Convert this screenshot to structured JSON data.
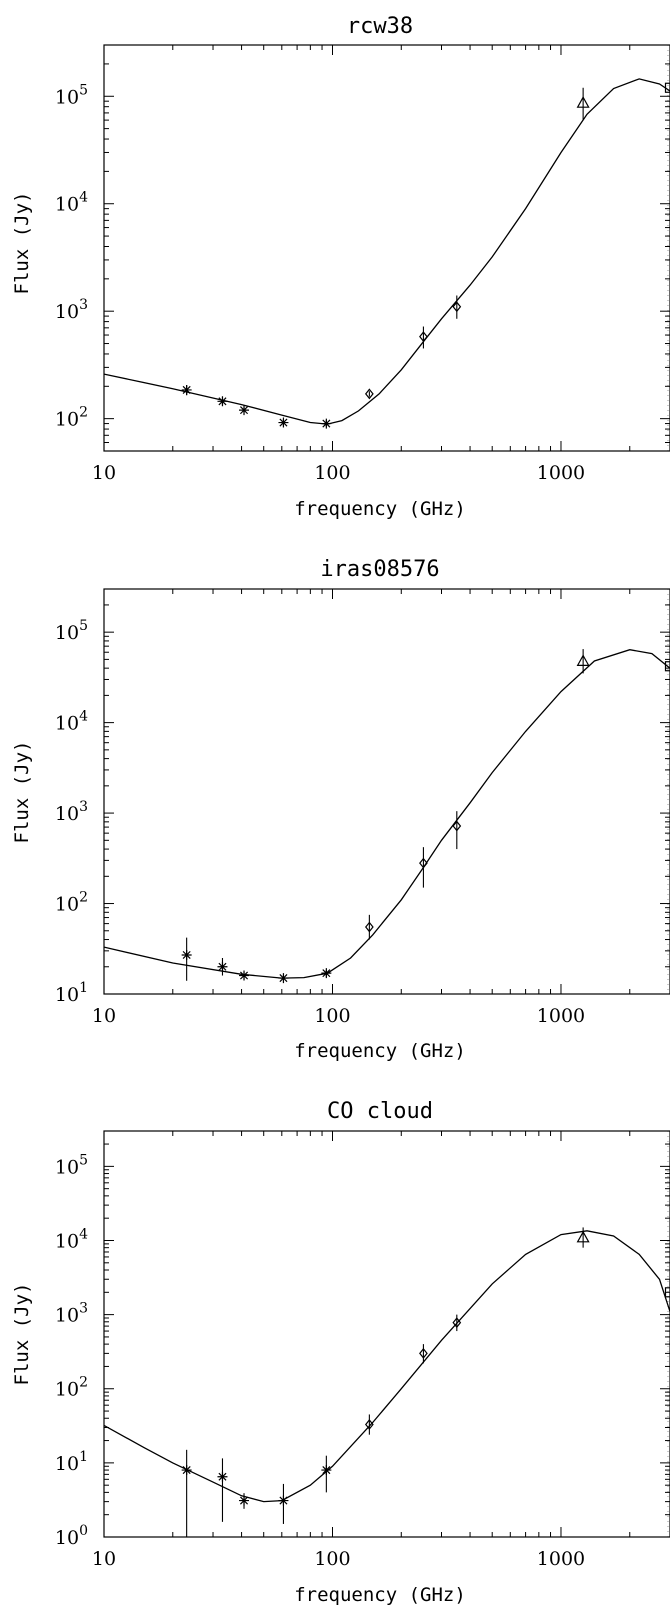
{
  "chart_data": [
    {
      "type": "scatter",
      "title": "rcw38",
      "xlabel": "frequency (GHz)",
      "ylabel": "Flux (Jy)",
      "x_scale": "log",
      "y_scale": "log",
      "xlim": [
        10,
        3000
      ],
      "ylim": [
        50,
        300000
      ],
      "x_ticks": [
        10,
        100,
        1000
      ],
      "x_tick_labels": [
        "10",
        "100",
        "1000"
      ],
      "y_ticks": [
        {
          "value": 100,
          "base": "10",
          "exp": "2"
        },
        {
          "value": 1000,
          "base": "10",
          "exp": "3"
        },
        {
          "value": 10000,
          "base": "10",
          "exp": "4"
        },
        {
          "value": 100000,
          "base": "10",
          "exp": "5"
        }
      ],
      "series": [
        {
          "marker": "asterisk",
          "points": [
            {
              "x": 23,
              "y": 185,
              "lo": 165,
              "hi": 205
            },
            {
              "x": 33,
              "y": 145,
              "lo": 132,
              "hi": 158
            },
            {
              "x": 41,
              "y": 120,
              "lo": 112,
              "hi": 130
            },
            {
              "x": 61,
              "y": 92,
              "lo": 85,
              "hi": 99
            },
            {
              "x": 94,
              "y": 90,
              "lo": 84,
              "hi": 97
            }
          ]
        },
        {
          "marker": "diamond",
          "points": [
            {
              "x": 145,
              "y": 170,
              "lo": 160,
              "hi": 180
            },
            {
              "x": 250,
              "y": 580,
              "lo": 450,
              "hi": 720
            },
            {
              "x": 350,
              "y": 1100,
              "lo": 850,
              "hi": 1400
            }
          ]
        },
        {
          "marker": "triangle",
          "points": [
            {
              "x": 1250,
              "y": 87000,
              "lo": 60000,
              "hi": 120000
            }
          ]
        },
        {
          "marker": "square",
          "points": [
            {
              "x": 3000,
              "y": 120000,
              "lo": 110000,
              "hi": 130000
            }
          ]
        }
      ],
      "fit_curve": [
        [
          10,
          260
        ],
        [
          20,
          190
        ],
        [
          40,
          135
        ],
        [
          60,
          108
        ],
        [
          80,
          92
        ],
        [
          95,
          89
        ],
        [
          110,
          96
        ],
        [
          130,
          118
        ],
        [
          160,
          170
        ],
        [
          200,
          285
        ],
        [
          250,
          520
        ],
        [
          300,
          850
        ],
        [
          400,
          1750
        ],
        [
          500,
          3200
        ],
        [
          700,
          9000
        ],
        [
          1000,
          30000
        ],
        [
          1300,
          68000
        ],
        [
          1700,
          118000
        ],
        [
          2200,
          145000
        ],
        [
          2700,
          130000
        ],
        [
          3000,
          112000
        ]
      ]
    },
    {
      "type": "scatter",
      "title": "iras08576",
      "xlabel": "frequency (GHz)",
      "ylabel": "Flux (Jy)",
      "x_scale": "log",
      "y_scale": "log",
      "xlim": [
        10,
        3000
      ],
      "ylim": [
        10,
        300000
      ],
      "x_ticks": [
        10,
        100,
        1000
      ],
      "x_tick_labels": [
        "10",
        "100",
        "1000"
      ],
      "y_ticks": [
        {
          "value": 10,
          "base": "10",
          "exp": "1"
        },
        {
          "value": 100,
          "base": "10",
          "exp": "2"
        },
        {
          "value": 1000,
          "base": "10",
          "exp": "3"
        },
        {
          "value": 10000,
          "base": "10",
          "exp": "4"
        },
        {
          "value": 100000,
          "base": "10",
          "exp": "5"
        }
      ],
      "series": [
        {
          "marker": "asterisk",
          "points": [
            {
              "x": 23,
              "y": 27,
              "lo": 14,
              "hi": 42
            },
            {
              "x": 33,
              "y": 20,
              "lo": 16,
              "hi": 25
            },
            {
              "x": 41,
              "y": 16,
              "lo": 14.5,
              "hi": 17.5
            },
            {
              "x": 61,
              "y": 15,
              "lo": 13.8,
              "hi": 16.2
            },
            {
              "x": 94,
              "y": 17,
              "lo": 15.5,
              "hi": 18.5
            }
          ]
        },
        {
          "marker": "diamond",
          "points": [
            {
              "x": 145,
              "y": 55,
              "lo": 40,
              "hi": 75
            },
            {
              "x": 250,
              "y": 280,
              "lo": 150,
              "hi": 420
            },
            {
              "x": 350,
              "y": 720,
              "lo": 400,
              "hi": 1050
            }
          ]
        },
        {
          "marker": "triangle",
          "points": [
            {
              "x": 1250,
              "y": 48000,
              "lo": 35000,
              "hi": 65000
            }
          ]
        },
        {
          "marker": "square",
          "points": [
            {
              "x": 3000,
              "y": 42000,
              "lo": 38000,
              "hi": 46000
            }
          ]
        }
      ],
      "fit_curve": [
        [
          10,
          33
        ],
        [
          20,
          22
        ],
        [
          40,
          16.5
        ],
        [
          60,
          15
        ],
        [
          75,
          15.2
        ],
        [
          95,
          17
        ],
        [
          120,
          25
        ],
        [
          150,
          45
        ],
        [
          200,
          110
        ],
        [
          250,
          250
        ],
        [
          300,
          500
        ],
        [
          400,
          1300
        ],
        [
          500,
          2800
        ],
        [
          700,
          8000
        ],
        [
          1000,
          22000
        ],
        [
          1400,
          48000
        ],
        [
          2000,
          64000
        ],
        [
          2500,
          58000
        ],
        [
          3000,
          40000
        ]
      ]
    },
    {
      "type": "scatter",
      "title": "CO cloud",
      "xlabel": "frequency (GHz)",
      "ylabel": "Flux (Jy)",
      "x_scale": "log",
      "y_scale": "log",
      "xlim": [
        10,
        3000
      ],
      "ylim": [
        1,
        300000
      ],
      "x_ticks": [
        10,
        100,
        1000
      ],
      "x_tick_labels": [
        "10",
        "100",
        "1000"
      ],
      "y_ticks": [
        {
          "value": 1,
          "base": "10",
          "exp": "0"
        },
        {
          "value": 10,
          "base": "10",
          "exp": "1"
        },
        {
          "value": 100,
          "base": "10",
          "exp": "2"
        },
        {
          "value": 1000,
          "base": "10",
          "exp": "3"
        },
        {
          "value": 10000,
          "base": "10",
          "exp": "4"
        },
        {
          "value": 100000,
          "base": "10",
          "exp": "5"
        }
      ],
      "series": [
        {
          "marker": "asterisk",
          "points": [
            {
              "x": 23,
              "y": 8,
              "lo": 1,
              "hi": 15
            },
            {
              "x": 33,
              "y": 6.5,
              "lo": 1.6,
              "hi": 11.5
            },
            {
              "x": 41,
              "y": 3.1,
              "lo": 2.4,
              "hi": 3.9
            },
            {
              "x": 61,
              "y": 3.1,
              "lo": 1.5,
              "hi": 5.2
            },
            {
              "x": 94,
              "y": 8,
              "lo": 4,
              "hi": 12.5
            }
          ]
        },
        {
          "marker": "diamond",
          "points": [
            {
              "x": 145,
              "y": 33,
              "lo": 24,
              "hi": 45
            },
            {
              "x": 250,
              "y": 300,
              "lo": 220,
              "hi": 400
            },
            {
              "x": 350,
              "y": 780,
              "lo": 600,
              "hi": 1000
            }
          ]
        },
        {
          "marker": "triangle",
          "points": [
            {
              "x": 1250,
              "y": 11000,
              "lo": 8000,
              "hi": 15000
            }
          ]
        },
        {
          "marker": "square",
          "points": [
            {
              "x": 3000,
              "y": 2000,
              "lo": 1400,
              "hi": 2900
            }
          ]
        }
      ],
      "fit_curve": [
        [
          10,
          32
        ],
        [
          15,
          16
        ],
        [
          20,
          10
        ],
        [
          30,
          5.5
        ],
        [
          40,
          3.6
        ],
        [
          50,
          3.0
        ],
        [
          60,
          3.1
        ],
        [
          80,
          5
        ],
        [
          100,
          9
        ],
        [
          150,
          35
        ],
        [
          200,
          100
        ],
        [
          300,
          450
        ],
        [
          500,
          2600
        ],
        [
          700,
          6500
        ],
        [
          1000,
          12000
        ],
        [
          1300,
          13500
        ],
        [
          1700,
          11500
        ],
        [
          2200,
          6500
        ],
        [
          2700,
          3000
        ],
        [
          3000,
          1100
        ]
      ]
    }
  ]
}
